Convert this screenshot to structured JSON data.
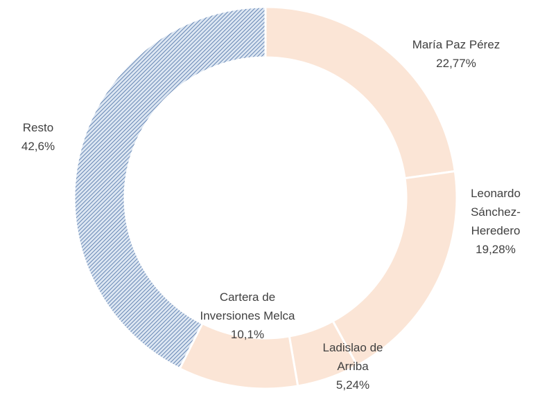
{
  "chart_data": {
    "type": "donut",
    "categories": [
      "María Paz Pérez",
      "Leonardo Sánchez-Heredero",
      "Ladislao de Arriba",
      "Cartera de Inversiones Melca",
      "Resto"
    ],
    "values": [
      22.77,
      19.28,
      5.24,
      10.1,
      42.6
    ],
    "value_labels": [
      "22,77%",
      "19,28%",
      "5,24%",
      "10,1%",
      "42,6%"
    ],
    "colors": [
      "#fbe5d6",
      "#fbe5d6",
      "#fbe5d6",
      "#fbe5d6",
      "#9dc3e6"
    ],
    "hatched": [
      false,
      false,
      false,
      false,
      true
    ]
  }
}
